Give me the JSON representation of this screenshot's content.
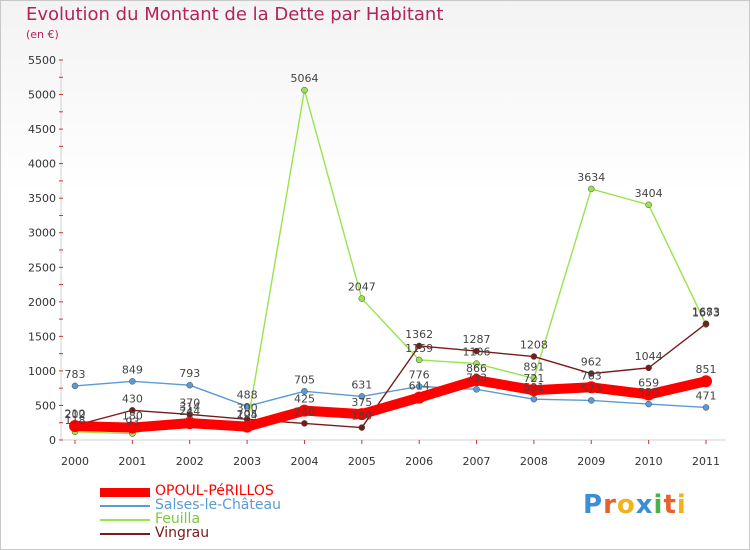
{
  "chart_data": {
    "type": "line",
    "title": "Evolution du Montant de la Dette par Habitant",
    "subtitle": "(en €)",
    "categories": [
      "2000",
      "2001",
      "2002",
      "2003",
      "2004",
      "2005",
      "2006",
      "2007",
      "2008",
      "2009",
      "2010",
      "2011"
    ],
    "yticks": [
      0,
      500,
      1000,
      1500,
      2000,
      2500,
      3000,
      3500,
      4000,
      4500,
      5000,
      5500
    ],
    "ylim": [
      0,
      5500
    ],
    "grid": false,
    "legend_position": "bottom-left",
    "series": [
      {
        "name": "OPOUL-PéRILLOS",
        "color": "#ff0000",
        "values": [
          202,
          180,
          244,
          194,
          425,
          375,
          614,
          866,
          721,
          763,
          659,
          851
        ]
      },
      {
        "name": "Salses-le-Château",
        "color": "#5b9bd5",
        "values": [
          783,
          849,
          793,
          488,
          705,
          631,
          776,
          733,
          591,
          573,
          520,
          471
        ]
      },
      {
        "name": "Feuilla",
        "color": "#99e34f",
        "values": [
          118,
          93,
          314,
          205,
          5064,
          2047,
          1159,
          1106,
          891,
          3634,
          3404,
          1673
        ]
      },
      {
        "name": "Vingrau",
        "color": "#7a1a1a",
        "values": [
          210,
          430,
          370,
          300,
          240,
          180,
          1362,
          1287,
          1208,
          962,
          1044,
          1683
        ]
      }
    ]
  },
  "brand": {
    "text": "Proxiti",
    "letter_colors": [
      "#3a8fd6",
      "#e8602c",
      "#f0b21f",
      "#3a8fd6",
      "#49b04a",
      "#e8602c",
      "#f0b21f"
    ]
  }
}
